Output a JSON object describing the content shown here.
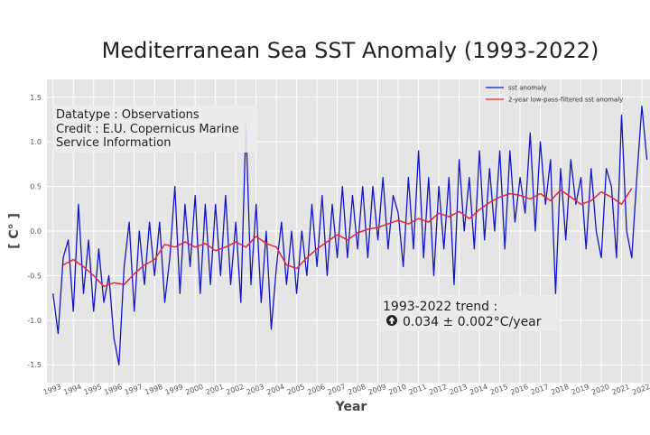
{
  "chart_data": {
    "type": "line",
    "title": "Mediterranean Sea SST Anomaly (1993-2022)",
    "xlabel": "Year",
    "ylabel": "[ C° ]",
    "xlim": [
      1993,
      2023
    ],
    "ylim": [
      -1.7,
      1.7
    ],
    "yticks": [
      -1.5,
      -1.0,
      -0.5,
      0.0,
      0.5,
      1.0,
      1.5
    ],
    "yticklabels": [
      "-1.5",
      "-1.0",
      "-0.5",
      "0.0",
      "0.5",
      "1.0",
      "1.5"
    ],
    "xticks": [
      1993,
      1994,
      1995,
      1996,
      1997,
      1998,
      1999,
      2000,
      2001,
      2002,
      2003,
      2004,
      2005,
      2006,
      2007,
      2008,
      2009,
      2010,
      2011,
      2012,
      2013,
      2014,
      2015,
      2016,
      2017,
      2018,
      2019,
      2020,
      2021,
      2022
    ],
    "xticklabels": [
      "1993",
      "1994",
      "1995",
      "1996",
      "1997",
      "1998",
      "1999",
      "2000",
      "2001",
      "2002",
      "2003",
      "2004",
      "2005",
      "2006",
      "2007",
      "2008",
      "2009",
      "2010",
      "2011",
      "2012",
      "2013",
      "2014",
      "2015",
      "2016",
      "2017",
      "2018",
      "2019",
      "2020",
      "2021",
      "2022"
    ],
    "grid": true,
    "legend_position": "top-right",
    "series": [
      {
        "name": "sst anomaly",
        "color": "#1515c8",
        "x": [
          1993.0,
          1993.25,
          1993.5,
          1993.75,
          1994.0,
          1994.25,
          1994.5,
          1994.75,
          1995.0,
          1995.25,
          1995.5,
          1995.75,
          1996.0,
          1996.25,
          1996.5,
          1996.75,
          1997.0,
          1997.25,
          1997.5,
          1997.75,
          1998.0,
          1998.25,
          1998.5,
          1998.75,
          1999.0,
          1999.25,
          1999.5,
          1999.75,
          2000.0,
          2000.25,
          2000.5,
          2000.75,
          2001.0,
          2001.25,
          2001.5,
          2001.75,
          2002.0,
          2002.25,
          2002.5,
          2002.75,
          2003.0,
          2003.25,
          2003.5,
          2003.75,
          2004.0,
          2004.25,
          2004.5,
          2004.75,
          2005.0,
          2005.25,
          2005.5,
          2005.75,
          2006.0,
          2006.25,
          2006.5,
          2006.75,
          2007.0,
          2007.25,
          2007.5,
          2007.75,
          2008.0,
          2008.25,
          2008.5,
          2008.75,
          2009.0,
          2009.25,
          2009.5,
          2009.75,
          2010.0,
          2010.25,
          2010.5,
          2010.75,
          2011.0,
          2011.25,
          2011.5,
          2011.75,
          2012.0,
          2012.25,
          2012.5,
          2012.75,
          2013.0,
          2013.25,
          2013.5,
          2013.75,
          2014.0,
          2014.25,
          2014.5,
          2014.75,
          2015.0,
          2015.25,
          2015.5,
          2015.75,
          2016.0,
          2016.25,
          2016.5,
          2016.75,
          2017.0,
          2017.25,
          2017.5,
          2017.75,
          2018.0,
          2018.25,
          2018.5,
          2018.75,
          2019.0,
          2019.25,
          2019.5,
          2019.75,
          2020.0,
          2020.25,
          2020.5,
          2020.75,
          2021.0,
          2021.25,
          2021.5,
          2021.75,
          2022.0,
          2022.25,
          2022.5,
          2022.75
        ],
        "values": [
          -0.7,
          -1.15,
          -0.3,
          -0.1,
          -0.9,
          0.3,
          -0.7,
          -0.1,
          -0.9,
          -0.2,
          -0.8,
          -0.5,
          -1.2,
          -1.5,
          -0.4,
          0.1,
          -0.9,
          0.0,
          -0.6,
          0.1,
          -0.5,
          0.1,
          -0.8,
          -0.3,
          0.5,
          -0.7,
          0.3,
          -0.4,
          0.4,
          -0.7,
          0.3,
          -0.6,
          0.3,
          -0.5,
          0.4,
          -0.6,
          0.1,
          -0.8,
          1.2,
          -0.6,
          0.3,
          -0.8,
          0.0,
          -1.1,
          -0.4,
          0.1,
          -0.6,
          0.0,
          -0.7,
          0.0,
          -0.5,
          0.3,
          -0.4,
          0.4,
          -0.5,
          0.3,
          -0.3,
          0.5,
          -0.3,
          0.4,
          -0.2,
          0.5,
          -0.3,
          0.5,
          -0.1,
          0.6,
          -0.2,
          0.4,
          0.2,
          -0.4,
          0.6,
          -0.2,
          0.9,
          -0.3,
          0.6,
          -0.5,
          0.5,
          -0.2,
          0.6,
          -0.6,
          0.8,
          0.0,
          0.6,
          -0.2,
          0.9,
          -0.1,
          0.7,
          0.0,
          0.9,
          -0.2,
          0.9,
          0.1,
          0.6,
          0.2,
          1.1,
          0.0,
          1.0,
          0.3,
          0.8,
          -0.7,
          0.7,
          -0.1,
          0.8,
          0.3,
          0.6,
          -0.2,
          0.7,
          0.0,
          -0.3,
          0.7,
          0.5,
          -0.3,
          1.3,
          0.0,
          -0.3,
          0.6,
          1.4,
          0.8,
          0.2,
          1.3
        ],
        "draw_to": 22.85
      },
      {
        "name": "2-year low-pass-filtered sst anomaly",
        "color": "#e32636",
        "x": [
          1993.5,
          1994.0,
          1994.5,
          1995.0,
          1995.5,
          1996.0,
          1996.5,
          1997.0,
          1997.5,
          1998.0,
          1998.5,
          1999.0,
          1999.5,
          2000.0,
          2000.5,
          2001.0,
          2001.5,
          2002.0,
          2002.5,
          2003.0,
          2003.5,
          2004.0,
          2004.5,
          2005.0,
          2005.5,
          2006.0,
          2006.5,
          2007.0,
          2007.5,
          2008.0,
          2008.5,
          2009.0,
          2009.5,
          2010.0,
          2010.5,
          2011.0,
          2011.5,
          2012.0,
          2012.5,
          2013.0,
          2013.5,
          2014.0,
          2014.5,
          2015.0,
          2015.5,
          2016.0,
          2016.5,
          2017.0,
          2017.5,
          2018.0,
          2018.5,
          2019.0,
          2019.5,
          2020.0,
          2020.5,
          2021.0,
          2021.5
        ],
        "values": [
          -0.38,
          -0.32,
          -0.4,
          -0.5,
          -0.62,
          -0.58,
          -0.6,
          -0.48,
          -0.38,
          -0.32,
          -0.15,
          -0.18,
          -0.12,
          -0.18,
          -0.14,
          -0.22,
          -0.18,
          -0.12,
          -0.18,
          -0.06,
          -0.14,
          -0.18,
          -0.38,
          -0.42,
          -0.3,
          -0.2,
          -0.12,
          -0.04,
          -0.1,
          -0.02,
          0.02,
          0.04,
          0.08,
          0.12,
          0.08,
          0.14,
          0.1,
          0.2,
          0.16,
          0.22,
          0.14,
          0.24,
          0.32,
          0.38,
          0.42,
          0.4,
          0.36,
          0.42,
          0.34,
          0.46,
          0.38,
          0.3,
          0.34,
          0.44,
          0.38,
          0.3,
          0.48
        ]
      }
    ],
    "annotations": {
      "info_lines": [
        "Datatype : Observations",
        "Credit : E.U. Copernicus Marine",
        "Service Information"
      ],
      "trend_line1": "1993-2022 trend :",
      "trend_line2": "0.034 ± 0.002°C/year"
    }
  }
}
